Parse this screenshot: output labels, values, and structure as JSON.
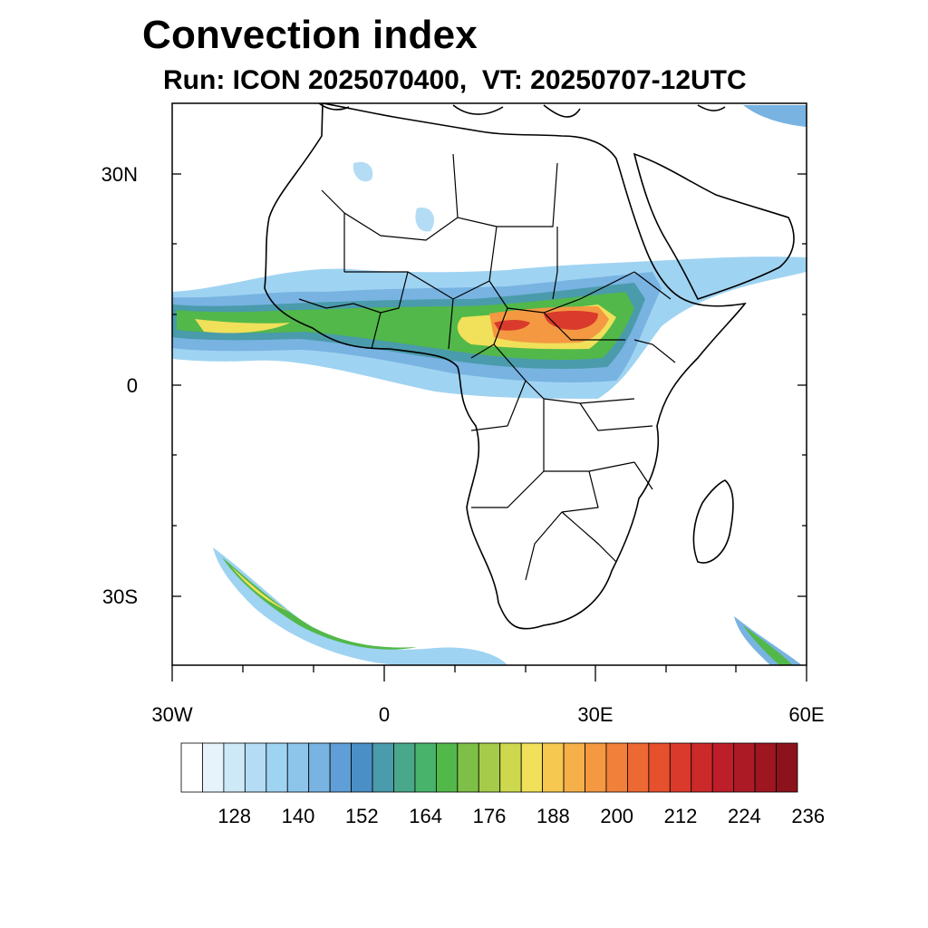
{
  "title": "Convection index",
  "subtitle": "Run: ICON 2025070400,  VT: 20250707-12UTC",
  "map": {
    "lon_range": [
      -30,
      60
    ],
    "lat_range": [
      -40,
      40
    ],
    "lat_labels": [
      "30N",
      "0",
      "30S"
    ],
    "lon_labels": [
      "30W",
      "0",
      "30E",
      "60E"
    ]
  },
  "colorbar": {
    "labels": [
      "128",
      "140",
      "152",
      "164",
      "176",
      "188",
      "200",
      "212",
      "224",
      "236"
    ],
    "colors": [
      "#ffffff",
      "#e6f3fb",
      "#cde8f7",
      "#b4dcf4",
      "#9fd3f2",
      "#8dc5ea",
      "#78b3e2",
      "#5f9ed6",
      "#4a8fc5",
      "#4a9bab",
      "#49a88a",
      "#48b36a",
      "#52b849",
      "#7dbf47",
      "#a6cb4b",
      "#cdd84f",
      "#f0e05a",
      "#f6c84f",
      "#f6b04a",
      "#f49842",
      "#f1803a",
      "#ed6832",
      "#e5502d",
      "#da3a2b",
      "#cc292a",
      "#bd1e2a",
      "#ac1a25",
      "#9d1620",
      "#8c131c"
    ]
  }
}
